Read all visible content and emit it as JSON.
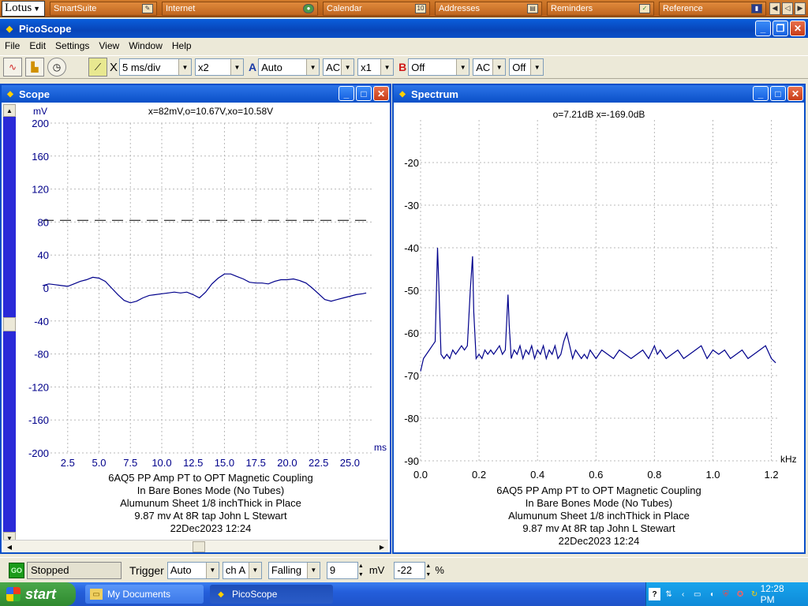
{
  "lotus": {
    "logo": "Lotus",
    "tabs": [
      {
        "label": "SmartSuite",
        "icon": "smartsuite-icon"
      },
      {
        "label": "Internet",
        "icon": "globe-icon"
      },
      {
        "label": "Calendar",
        "icon": "calendar-icon"
      },
      {
        "label": "Addresses",
        "icon": "address-card-icon"
      },
      {
        "label": "Reminders",
        "icon": "checkmark-icon"
      },
      {
        "label": "Reference",
        "icon": "book-icon"
      }
    ]
  },
  "app": {
    "title": "PicoScope"
  },
  "menu": [
    "File",
    "Edit",
    "Settings",
    "View",
    "Window",
    "Help"
  ],
  "toolbar": {
    "timebase": "5 ms/div",
    "zoom": "x2",
    "channel_a_label": "A",
    "channel_a_range": "Auto",
    "channel_a_coupling": "AC",
    "channel_a_multiplier": "x1",
    "channel_b_label": "B",
    "channel_b_range": "Off",
    "channel_b_coupling": "AC",
    "channel_b_extra": "Off",
    "close_glyph": "X"
  },
  "scope": {
    "title": "Scope",
    "readout": "x=82mV,o=10.67V,xo=10.58V",
    "y_unit": "mV",
    "x_unit": "ms",
    "caption": [
      "6AQ5 PP Amp PT to OPT Magnetic Coupling",
      "In Bare Bones Mode (No Tubes)",
      "Alumunum Sheet 1/8 inchThick in Place",
      "9.87 mv At 8R tap John L Stewart",
      "22Dec2023  12:24"
    ]
  },
  "spectrum": {
    "title": "Spectrum",
    "readout": "o=7.21dB  x=-169.0dB",
    "x_unit": "kHz",
    "caption": [
      "6AQ5 PP Amp PT to OPT Magnetic Coupling",
      "In Bare Bones Mode (No Tubes)",
      "Alumunum Sheet 1/8 inchThick in Place",
      "9.87 mv At 8R tap John L Stewart",
      "22Dec2023  12:24"
    ]
  },
  "status": {
    "go_label": "GO",
    "state": "Stopped",
    "trigger_label": "Trigger",
    "trigger_mode": "Auto",
    "trigger_channel": "ch A",
    "trigger_edge": "Falling",
    "trigger_level": "9",
    "trigger_unit": "mV",
    "pretrigger": "-22",
    "pretrigger_unit": "%"
  },
  "taskbar": {
    "start": "start",
    "items": [
      "My Documents",
      "PicoScope"
    ],
    "clock": "12:28 PM"
  },
  "colors": {
    "trace": "#00008b",
    "grid": "#b8b8b8",
    "title_blue": "#0a4fc8"
  },
  "chart_data": [
    {
      "type": "line",
      "title": "",
      "xlabel": "ms",
      "ylabel": "mV",
      "xlim": [
        0.5,
        26.8
      ],
      "ylim": [
        -200,
        200
      ],
      "x_ticks": [
        2.5,
        5.0,
        7.5,
        10.0,
        12.5,
        15.0,
        17.5,
        20.0,
        22.5,
        25.0
      ],
      "y_ticks": [
        200,
        160,
        120,
        80,
        40,
        0,
        -40,
        -80,
        -120,
        -160,
        -200
      ],
      "grid": true,
      "marker_line": {
        "y": 82,
        "style": "dashed"
      },
      "series": [
        {
          "x": [
            0.5,
            1.0,
            1.5,
            2.0,
            2.5,
            3.0,
            3.5,
            4.0,
            4.5,
            5.0,
            5.5,
            6.0,
            6.5,
            7.0,
            7.5,
            8.0,
            8.5,
            9.0,
            9.5,
            10.0,
            10.5,
            11.0,
            11.5,
            12.0,
            12.5,
            13.0,
            13.5,
            14.0,
            14.5,
            15.0,
            15.5,
            16.0,
            16.5,
            17.0,
            17.5,
            18.0,
            18.5,
            19.0,
            19.5,
            20.0,
            20.5,
            21.0,
            21.5,
            22.0,
            22.5,
            23.0,
            23.5,
            24.0,
            24.5,
            25.0,
            25.5,
            26.0,
            26.3
          ],
          "y": [
            3,
            5,
            4,
            3,
            2,
            5,
            8,
            10,
            13,
            12,
            8,
            0,
            -8,
            -15,
            -18,
            -16,
            -12,
            -9,
            -8,
            -7,
            -6,
            -5,
            -6,
            -5,
            -8,
            -12,
            -5,
            5,
            12,
            17,
            17,
            14,
            11,
            7,
            6,
            6,
            5,
            8,
            10,
            10,
            11,
            9,
            6,
            0,
            -7,
            -14,
            -16,
            -14,
            -12,
            -10,
            -8,
            -7,
            -6
          ]
        }
      ]
    },
    {
      "type": "line",
      "title": "",
      "xlabel": "kHz",
      "ylabel": "",
      "xlim": [
        0.0,
        1.22
      ],
      "ylim": [
        -90,
        -10
      ],
      "x_ticks": [
        0.0,
        0.2,
        0.4,
        0.6,
        0.8,
        1.0,
        1.2
      ],
      "y_ticks": [
        -20,
        -30,
        -40,
        -50,
        -60,
        -70,
        -80,
        -90
      ],
      "grid": true,
      "series": [
        {
          "x": [
            0.0,
            0.01,
            0.02,
            0.03,
            0.04,
            0.05,
            0.058,
            0.062,
            0.07,
            0.08,
            0.09,
            0.1,
            0.11,
            0.12,
            0.13,
            0.14,
            0.15,
            0.16,
            0.17,
            0.178,
            0.182,
            0.19,
            0.2,
            0.21,
            0.22,
            0.23,
            0.24,
            0.25,
            0.26,
            0.27,
            0.28,
            0.29,
            0.299,
            0.303,
            0.31,
            0.32,
            0.33,
            0.34,
            0.35,
            0.36,
            0.37,
            0.38,
            0.39,
            0.4,
            0.41,
            0.42,
            0.43,
            0.44,
            0.45,
            0.46,
            0.47,
            0.48,
            0.49,
            0.5,
            0.51,
            0.52,
            0.53,
            0.54,
            0.55,
            0.56,
            0.57,
            0.58,
            0.59,
            0.6,
            0.62,
            0.64,
            0.66,
            0.68,
            0.7,
            0.72,
            0.74,
            0.76,
            0.78,
            0.8,
            0.81,
            0.82,
            0.84,
            0.86,
            0.88,
            0.9,
            0.92,
            0.94,
            0.96,
            0.98,
            1.0,
            1.02,
            1.04,
            1.06,
            1.08,
            1.1,
            1.12,
            1.14,
            1.16,
            1.18,
            1.2,
            1.215
          ],
          "y": [
            -69,
            -66,
            -65,
            -64,
            -63,
            -62,
            -40,
            -48,
            -65,
            -66,
            -65,
            -66,
            -64,
            -65,
            -64,
            -63,
            -64,
            -63,
            -50,
            -42,
            -55,
            -66,
            -65,
            -66,
            -64,
            -65,
            -64,
            -65,
            -64,
            -63,
            -65,
            -64,
            -51,
            -58,
            -66,
            -64,
            -65,
            -63,
            -66,
            -64,
            -65,
            -63,
            -66,
            -64,
            -65,
            -63,
            -66,
            -64,
            -65,
            -63,
            -66,
            -65,
            -62,
            -60,
            -63,
            -66,
            -64,
            -65,
            -66,
            -65,
            -66,
            -64,
            -65,
            -66,
            -64,
            -65,
            -66,
            -64,
            -65,
            -66,
            -65,
            -64,
            -66,
            -63,
            -65,
            -64,
            -66,
            -65,
            -64,
            -66,
            -65,
            -64,
            -63,
            -66,
            -64,
            -65,
            -64,
            -66,
            -65,
            -64,
            -66,
            -65,
            -64,
            -63,
            -66,
            -67
          ]
        }
      ]
    }
  ]
}
